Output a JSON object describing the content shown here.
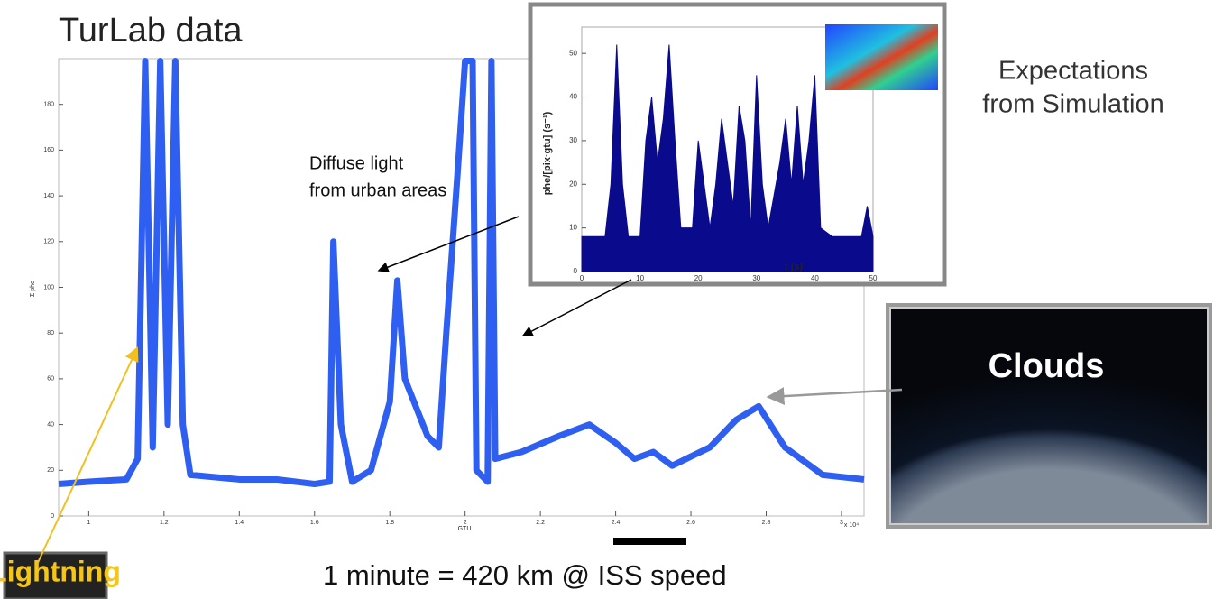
{
  "title": "TurLab data",
  "side_label": [
    "Expectations",
    "from Simulation"
  ],
  "annotation": [
    "Diffuse light",
    "from urban areas"
  ],
  "clouds_label": "Clouds",
  "lightning_label": "Lightning",
  "scale_note": "1 minute = 420 km @ ISS speed",
  "main_chart": {
    "type": "line",
    "color": "#2f5ff0",
    "xlabel": "GTU",
    "ylabel": "Σ phe",
    "x_multiplier": "x 10⁴",
    "xlim": [
      0.92,
      3.06
    ],
    "ylim": [
      0,
      200
    ],
    "xticks": [
      1,
      1.2,
      1.4,
      1.6,
      1.8,
      2,
      2.2,
      2.4,
      2.6,
      2.8,
      3
    ],
    "yticks": [
      0,
      20,
      40,
      60,
      80,
      100,
      120,
      140,
      160,
      180
    ],
    "x": [
      0.92,
      1.0,
      1.1,
      1.13,
      1.15,
      1.17,
      1.19,
      1.21,
      1.23,
      1.25,
      1.27,
      1.4,
      1.5,
      1.6,
      1.64,
      1.65,
      1.67,
      1.7,
      1.75,
      1.8,
      1.82,
      1.84,
      1.9,
      1.93,
      1.95,
      1.98,
      2.0,
      2.02,
      2.03,
      2.06,
      2.07,
      2.08,
      2.15,
      2.25,
      2.33,
      2.4,
      2.45,
      2.5,
      2.55,
      2.65,
      2.72,
      2.78,
      2.85,
      2.95,
      3.06
    ],
    "values": [
      14,
      15,
      16,
      25,
      199,
      30,
      199,
      40,
      199,
      40,
      18,
      16,
      16,
      14,
      15,
      120,
      40,
      15,
      20,
      50,
      103,
      60,
      35,
      30,
      80,
      150,
      199,
      199,
      20,
      15,
      199,
      25,
      28,
      35,
      40,
      32,
      25,
      28,
      22,
      30,
      42,
      48,
      30,
      18,
      16
    ]
  },
  "inset_chart": {
    "type": "area",
    "color": "#0a0a8c",
    "xlabel": "t (s)",
    "ylabel": "phe/[pix·gtu] (s⁻¹)",
    "xlim": [
      0,
      50
    ],
    "ylim": [
      0,
      55
    ],
    "xticks": [
      0,
      10,
      20,
      30,
      40,
      50
    ],
    "yticks": [
      0,
      10,
      20,
      30,
      40,
      50
    ],
    "x": [
      0,
      4,
      5,
      6,
      7,
      8,
      10,
      11,
      12,
      13,
      14,
      15,
      16,
      17,
      19,
      20,
      21,
      22,
      23,
      24,
      25,
      26,
      27,
      28,
      29,
      30,
      31,
      32,
      34,
      35,
      36,
      37,
      38,
      39,
      40,
      41,
      43,
      48,
      49,
      50
    ],
    "values": [
      8,
      8,
      20,
      52,
      20,
      8,
      8,
      30,
      40,
      25,
      35,
      52,
      30,
      10,
      10,
      30,
      20,
      10,
      20,
      35,
      25,
      15,
      38,
      30,
      10,
      45,
      20,
      10,
      25,
      35,
      20,
      38,
      20,
      30,
      45,
      10,
      8,
      8,
      15,
      8
    ]
  }
}
